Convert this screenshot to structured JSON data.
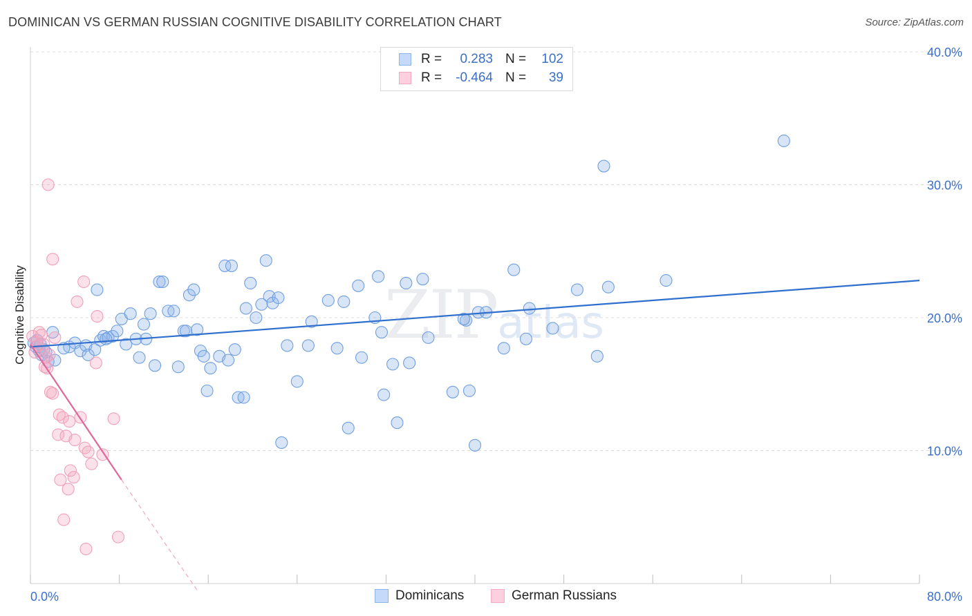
{
  "header": {
    "title": "DOMINICAN VS GERMAN RUSSIAN COGNITIVE DISABILITY CORRELATION CHART",
    "source": "Source: ZipAtlas.com"
  },
  "legend": {
    "rows": [
      {
        "r_label": "R =",
        "r_value": "0.283",
        "n_label": "N =",
        "n_value": "102",
        "color": "#8fb4e8"
      },
      {
        "r_label": "R =",
        "r_value": "-0.464",
        "n_label": "N =",
        "n_value": "39",
        "color": "#f4a9c0"
      }
    ]
  },
  "watermark": {
    "zip": "ZIP",
    "atlas": "atlas"
  },
  "chart_data": {
    "type": "scatter",
    "ylabel": "Cognitive Disability",
    "xlim": [
      0,
      80
    ],
    "ylim": [
      0,
      40
    ],
    "x_tick_labels": [
      "0.0%",
      "80.0%"
    ],
    "y_ticks": [
      10,
      20,
      30,
      40
    ],
    "y_tick_labels": [
      "10.0%",
      "20.0%",
      "30.0%",
      "40.0%"
    ],
    "grid": "horizontal dashed",
    "colors": {
      "dominicans": "#5b8fd9",
      "german_russians": "#ee8fb0",
      "blue_line": "#2f6fcd",
      "pink_line": "#e0679a"
    },
    "series": [
      {
        "name": "Dominicans",
        "trend": {
          "x0": 0,
          "y0": 17.8,
          "x1": 80,
          "y1": 22.8
        },
        "points": [
          [
            0.3,
            18.1
          ],
          [
            0.5,
            17.8
          ],
          [
            0.6,
            18.3
          ],
          [
            0.8,
            17.5
          ],
          [
            0.9,
            18.0
          ],
          [
            1.0,
            17.2
          ],
          [
            1.2,
            17.6
          ],
          [
            1.4,
            17.4
          ],
          [
            1.6,
            16.7
          ],
          [
            2.0,
            18.9
          ],
          [
            2.2,
            16.8
          ],
          [
            3.5,
            17.8
          ],
          [
            4.0,
            18.1
          ],
          [
            4.5,
            17.5
          ],
          [
            5.0,
            17.9
          ],
          [
            5.2,
            17.2
          ],
          [
            5.8,
            17.6
          ],
          [
            6.0,
            22.1
          ],
          [
            6.3,
            18.3
          ],
          [
            6.6,
            18.6
          ],
          [
            7.0,
            18.5
          ],
          [
            7.4,
            18.6
          ],
          [
            7.8,
            19.0
          ],
          [
            8.2,
            19.9
          ],
          [
            8.6,
            18.0
          ],
          [
            9.0,
            20.3
          ],
          [
            9.5,
            18.4
          ],
          [
            9.8,
            17.0
          ],
          [
            10.2,
            19.5
          ],
          [
            10.4,
            18.4
          ],
          [
            10.8,
            20.3
          ],
          [
            11.2,
            16.4
          ],
          [
            11.6,
            22.7
          ],
          [
            11.9,
            22.7
          ],
          [
            12.4,
            20.5
          ],
          [
            12.9,
            20.5
          ],
          [
            13.3,
            16.3
          ],
          [
            13.8,
            19.0
          ],
          [
            14.0,
            19.0
          ],
          [
            14.3,
            21.7
          ],
          [
            14.7,
            22.1
          ],
          [
            15.0,
            19.1
          ],
          [
            15.3,
            17.5
          ],
          [
            15.6,
            17.1
          ],
          [
            15.9,
            14.5
          ],
          [
            16.2,
            16.2
          ],
          [
            17.0,
            17.1
          ],
          [
            17.5,
            23.9
          ],
          [
            17.8,
            16.8
          ],
          [
            18.1,
            23.9
          ],
          [
            18.4,
            17.6
          ],
          [
            18.7,
            14.0
          ],
          [
            19.2,
            14.0
          ],
          [
            19.4,
            20.7
          ],
          [
            19.8,
            22.6
          ],
          [
            20.3,
            20.0
          ],
          [
            20.8,
            21.0
          ],
          [
            21.2,
            24.3
          ],
          [
            21.5,
            21.6
          ],
          [
            21.8,
            21.1
          ],
          [
            22.3,
            21.5
          ],
          [
            22.6,
            10.6
          ],
          [
            23.1,
            17.9
          ],
          [
            24.0,
            15.2
          ],
          [
            25.0,
            17.9
          ],
          [
            25.3,
            19.7
          ],
          [
            26.8,
            21.3
          ],
          [
            27.6,
            17.7
          ],
          [
            28.2,
            21.2
          ],
          [
            28.6,
            11.7
          ],
          [
            29.5,
            22.4
          ],
          [
            29.8,
            17.0
          ],
          [
            31.0,
            20.0
          ],
          [
            31.3,
            23.1
          ],
          [
            31.6,
            18.9
          ],
          [
            31.8,
            14.2
          ],
          [
            32.6,
            16.5
          ],
          [
            33.0,
            12.1
          ],
          [
            33.8,
            22.6
          ],
          [
            34.1,
            16.6
          ],
          [
            35.3,
            22.9
          ],
          [
            35.8,
            18.5
          ],
          [
            38.0,
            14.4
          ],
          [
            39.2,
            19.8
          ],
          [
            39.5,
            14.5
          ],
          [
            40.0,
            10.4
          ],
          [
            40.3,
            20.4
          ],
          [
            41.0,
            20.4
          ],
          [
            42.6,
            17.7
          ],
          [
            43.5,
            23.6
          ],
          [
            44.6,
            18.4
          ],
          [
            44.9,
            20.7
          ],
          [
            47.0,
            19.2
          ],
          [
            49.2,
            22.1
          ],
          [
            51.0,
            17.1
          ],
          [
            51.6,
            31.4
          ],
          [
            52.0,
            22.3
          ],
          [
            57.2,
            22.8
          ],
          [
            67.8,
            33.3
          ],
          [
            39.0,
            19.9
          ],
          [
            6.8,
            18.4
          ],
          [
            3.0,
            17.7
          ]
        ]
      },
      {
        "name": "German Russians",
        "trend": {
          "x0": 0,
          "y0": 18.0,
          "x1": 8.2,
          "y1": 7.8
        },
        "trend_extension": {
          "x0": 8.2,
          "y0": 7.8,
          "x1": 15.0,
          "y1": -0.5
        },
        "points": [
          [
            0.2,
            18.6
          ],
          [
            0.4,
            17.4
          ],
          [
            0.5,
            18.2
          ],
          [
            0.8,
            18.9
          ],
          [
            1.0,
            18.7
          ],
          [
            1.2,
            18.0
          ],
          [
            1.4,
            17.0
          ],
          [
            1.5,
            16.2
          ],
          [
            1.6,
            30.0
          ],
          [
            1.7,
            17.2
          ],
          [
            1.8,
            14.4
          ],
          [
            2.0,
            14.3
          ],
          [
            2.0,
            24.4
          ],
          [
            2.2,
            18.5
          ],
          [
            2.5,
            11.2
          ],
          [
            2.6,
            12.7
          ],
          [
            2.7,
            7.8
          ],
          [
            2.9,
            12.5
          ],
          [
            3.0,
            4.8
          ],
          [
            3.2,
            11.1
          ],
          [
            3.4,
            7.1
          ],
          [
            3.5,
            12.2
          ],
          [
            3.6,
            8.5
          ],
          [
            3.9,
            8.0
          ],
          [
            4.0,
            10.8
          ],
          [
            4.2,
            21.2
          ],
          [
            4.5,
            12.5
          ],
          [
            4.8,
            22.7
          ],
          [
            4.9,
            10.2
          ],
          [
            5.0,
            2.6
          ],
          [
            5.2,
            9.9
          ],
          [
            5.5,
            9.0
          ],
          [
            5.9,
            16.6
          ],
          [
            6.0,
            20.1
          ],
          [
            6.5,
            9.7
          ],
          [
            7.5,
            12.4
          ],
          [
            7.9,
            3.5
          ],
          [
            1.3,
            16.3
          ],
          [
            0.7,
            17.9
          ]
        ]
      }
    ]
  },
  "bottom_legend": [
    {
      "label": "Dominicans",
      "color": "#8fb4e8"
    },
    {
      "label": "German Russians",
      "color": "#f4a9c0"
    }
  ]
}
